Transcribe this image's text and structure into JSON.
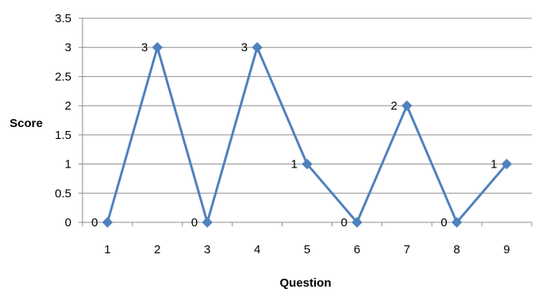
{
  "chart_data": {
    "type": "line",
    "title": "",
    "xlabel": "Question",
    "ylabel": "Score",
    "x": [
      "1",
      "2",
      "3",
      "4",
      "5",
      "6",
      "7",
      "8",
      "9"
    ],
    "series": [
      {
        "values": [
          0,
          3,
          0,
          3,
          1,
          0,
          2,
          0,
          1
        ],
        "color": "#4f81bd",
        "marker": "diamond"
      }
    ],
    "ylim": [
      0,
      3.5
    ],
    "yticks": [
      "0",
      "0.5",
      "1",
      "1.5",
      "2",
      "2.5",
      "3",
      "3.5"
    ],
    "data_labels": [
      "0",
      "3",
      "0",
      "3",
      "1",
      "0",
      "2",
      "0",
      "1"
    ],
    "grid": true,
    "legend": "none"
  }
}
